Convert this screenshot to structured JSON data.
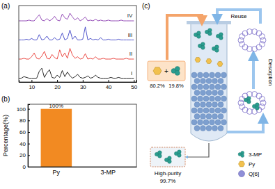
{
  "chart_data": [
    {
      "type": "line",
      "panel_label": "(a)",
      "x": [
        5,
        6,
        7,
        8,
        9,
        10,
        11,
        12,
        13,
        14,
        15,
        16,
        17,
        18,
        19,
        20,
        21,
        22,
        23,
        24,
        25,
        26,
        27,
        28,
        29,
        30,
        31,
        32,
        33,
        34,
        35,
        36,
        37,
        38,
        39,
        40,
        41,
        42,
        43,
        44,
        45,
        46,
        47,
        48,
        49,
        50
      ],
      "series": [
        {
          "name": "I",
          "color": "#111111",
          "values": [
            5,
            5,
            7,
            6,
            5,
            5,
            5,
            5,
            14,
            18,
            6,
            12,
            16,
            6,
            5,
            9,
            6,
            15,
            7,
            13,
            8,
            5,
            7,
            10,
            6,
            5,
            6,
            8,
            5,
            6,
            9,
            6,
            5,
            5,
            5,
            5,
            6,
            5,
            5,
            6,
            5,
            5,
            5,
            5,
            5,
            5
          ]
        },
        {
          "name": "II",
          "color": "#e8362f",
          "values": [
            30,
            30,
            31,
            30,
            30,
            33,
            38,
            31,
            30,
            34,
            40,
            31,
            30,
            36,
            32,
            30,
            42,
            33,
            38,
            31,
            44,
            35,
            31,
            33,
            30,
            31,
            37,
            30,
            31,
            30,
            33,
            30,
            30,
            31,
            30,
            30,
            30,
            31,
            30,
            30,
            30,
            30,
            31,
            30,
            30,
            30
          ]
        },
        {
          "name": "III",
          "color": "#3a3fc4",
          "values": [
            55,
            55,
            55,
            56,
            55,
            57,
            55,
            55,
            62,
            55,
            56,
            60,
            55,
            55,
            58,
            55,
            56,
            64,
            55,
            57,
            68,
            56,
            60,
            55,
            55,
            56,
            72,
            55,
            57,
            55,
            56,
            55,
            58,
            55,
            55,
            56,
            55,
            55,
            55,
            56,
            55,
            55,
            55,
            55,
            55,
            55
          ]
        },
        {
          "name": "IV",
          "color": "#8a3cb0",
          "values": [
            80,
            80,
            80,
            80,
            81,
            80,
            80,
            84,
            88,
            81,
            80,
            83,
            80,
            82,
            86,
            81,
            80,
            89,
            84,
            82,
            90,
            85,
            81,
            84,
            80,
            82,
            85,
            80,
            81,
            80,
            82,
            80,
            81,
            80,
            80,
            81,
            80,
            80,
            80,
            80,
            81,
            80,
            80,
            80,
            80,
            80
          ]
        }
      ],
      "xlim": [
        5,
        51
      ],
      "xticks": [
        10,
        20,
        30,
        40,
        50
      ],
      "ylim": [
        0,
        100
      ],
      "tick_labels": "x"
    },
    {
      "type": "bar",
      "panel_label": "(b)",
      "categories": [
        "Py",
        "3-MP"
      ],
      "values": [
        100,
        0
      ],
      "value_labels": [
        "100%",
        null
      ],
      "data_labels": true,
      "color": "#f28a22",
      "ylabel": "Percentage(%)",
      "ylim": [
        0,
        108
      ],
      "yticks": [
        0,
        20,
        40,
        60,
        80,
        100
      ]
    }
  ],
  "diagram": {
    "panel_label": "(c)",
    "feed_plus": "+",
    "feed_labels": [
      "80.2%",
      "19.8%"
    ],
    "reuse": "Reuse",
    "desorption": "Desorption",
    "product_label": "High-purity",
    "product_purity": "99.7%",
    "legend": [
      {
        "label": "3-MP"
      },
      {
        "label": "Py"
      },
      {
        "label": "Q[6]"
      }
    ]
  }
}
